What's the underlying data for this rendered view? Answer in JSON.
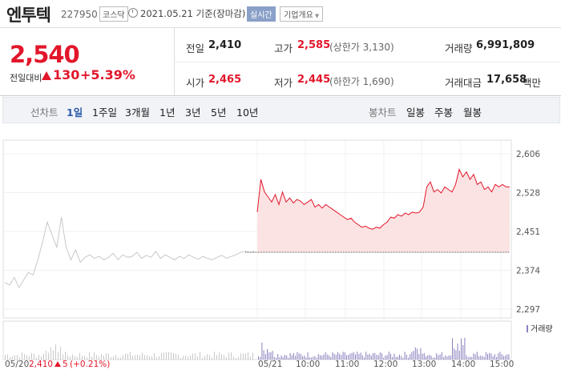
{
  "header": {
    "name": "엔투텍",
    "code": "227950",
    "market": "코스닥",
    "date_text": "2021.05.21 기준(장마감)",
    "realtime": "실시간",
    "company_info": "기업개요",
    "caret": "▼"
  },
  "price": {
    "current": "2,540",
    "compare_label": "전일대비",
    "change": "130",
    "change_pct": "+5.39%",
    "prev_label": "전일",
    "prev_value": "2,410",
    "high_label": "고가",
    "high_value": "2,585",
    "upper_limit": "(상한가 3,130)",
    "volume_label": "거래량",
    "volume_value": "6,991,809",
    "open_label": "시가",
    "open_value": "2,465",
    "low_label": "저가",
    "low_value": "2,445",
    "lower_limit": "(하한가 1,690)",
    "amount_label": "거래대금",
    "amount_value": "17,658",
    "amount_unit": "백만"
  },
  "periods": {
    "line_chart_label": "선차트",
    "items": [
      "1일",
      "1주일",
      "3개월",
      "1년",
      "3년",
      "5년",
      "10년"
    ],
    "active_index": 0,
    "candle_chart_label": "봉차트",
    "candle_items": [
      "일봉",
      "주봉",
      "월봉"
    ]
  },
  "colors": {
    "up": "#e2162b",
    "active": "#2f5ba8",
    "volume": "#8a7fbf"
  },
  "chart_data": {
    "type": "line",
    "y_ticks": [
      "2,606",
      "2,528",
      "2,451",
      "2,374",
      "2,297"
    ],
    "y_range": [
      2297,
      2606
    ],
    "prev_close": 2410,
    "x_labels": [
      "05/21",
      "10:00",
      "11:00",
      "12:00",
      "13:00",
      "14:00",
      "15:00"
    ],
    "volume_legend": "거래량",
    "prev_day_summary": {
      "date": "05/20",
      "close": "2,410",
      "change": "5",
      "change_pct": "(+0.21%)"
    },
    "prev_day_series": [
      2350,
      2345,
      2360,
      2340,
      2355,
      2370,
      2365,
      2395,
      2430,
      2470,
      2445,
      2420,
      2480,
      2420,
      2395,
      2415,
      2390,
      2400,
      2405,
      2398,
      2402,
      2395,
      2400,
      2408,
      2395,
      2405,
      2400,
      2402,
      2410,
      2398,
      2404,
      2400,
      2412,
      2398,
      2405,
      2400,
      2395,
      2402,
      2398,
      2405,
      2400,
      2396,
      2402,
      2398,
      2395,
      2400,
      2404,
      2398,
      2402,
      2405,
      2410,
      2412,
      2410,
      2412
    ],
    "today_series": [
      2490,
      2555,
      2530,
      2520,
      2510,
      2525,
      2505,
      2530,
      2510,
      2518,
      2508,
      2515,
      2512,
      2505,
      2510,
      2515,
      2500,
      2505,
      2498,
      2505,
      2500,
      2495,
      2490,
      2485,
      2480,
      2475,
      2478,
      2470,
      2465,
      2460,
      2462,
      2458,
      2456,
      2460,
      2458,
      2465,
      2470,
      2480,
      2478,
      2485,
      2482,
      2488,
      2485,
      2490,
      2488,
      2490,
      2500,
      2540,
      2550,
      2530,
      2535,
      2528,
      2540,
      2535,
      2530,
      2545,
      2575,
      2560,
      2570,
      2555,
      2565,
      2545,
      2550,
      2535,
      2540,
      2530,
      2545,
      2540,
      2545,
      2540,
      2540
    ]
  }
}
